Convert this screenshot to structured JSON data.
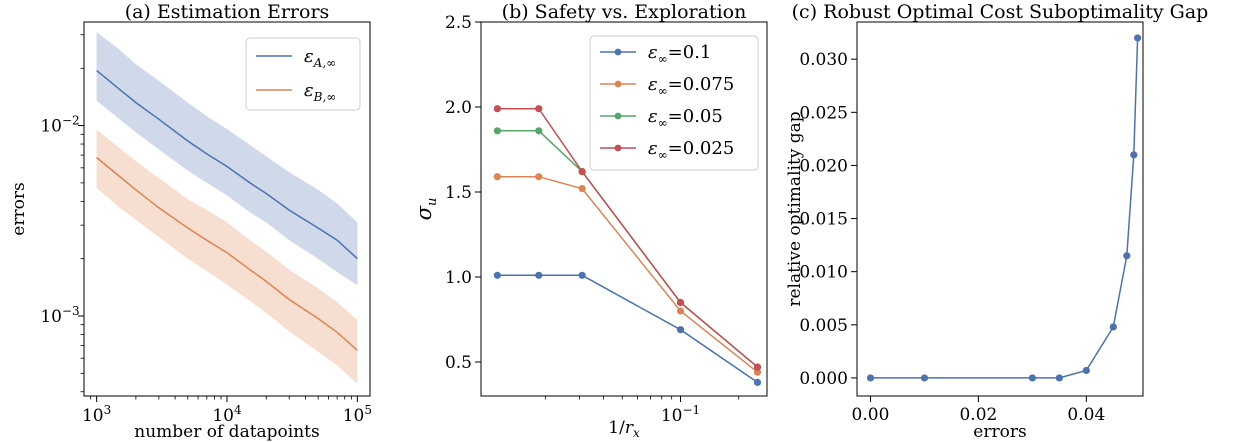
{
  "chart_data": [
    {
      "type": "line",
      "title": "(a) Estimation Errors",
      "xlabel": "number of datapoints",
      "ylabel": "errors",
      "xscale": "log",
      "yscale": "log",
      "xlim": [
        800,
        125000
      ],
      "ylim": [
        0.00038,
        0.035
      ],
      "xticks": [
        {
          "v": 1000,
          "b": "10",
          "e": "3"
        },
        {
          "v": 10000,
          "b": "10",
          "e": "4"
        },
        {
          "v": 100000,
          "b": "10",
          "e": "5"
        }
      ],
      "yticks": [
        {
          "v": 0.001,
          "b": "10",
          "e": "−3"
        },
        {
          "v": 0.01,
          "b": "10",
          "e": "−2"
        }
      ],
      "legend": {
        "position": "top-right",
        "entries": [
          {
            "main": "ε",
            "sub": "A,∞"
          },
          {
            "main": "ε",
            "sub": "B,∞"
          }
        ]
      },
      "series": [
        {
          "name": "ε_{A,∞}",
          "color": "#4c72b0",
          "band_color": "#4c72b0",
          "x": [
            1000,
            1500,
            2000,
            3000,
            5000,
            7000,
            10000,
            15000,
            20000,
            30000,
            50000,
            70000,
            100000
          ],
          "y": [
            0.0195,
            0.0155,
            0.0132,
            0.0108,
            0.0083,
            0.0071,
            0.0061,
            0.005,
            0.0044,
            0.0036,
            0.0029,
            0.0025,
            0.002
          ],
          "lower": [
            0.0135,
            0.0108,
            0.0092,
            0.0075,
            0.0058,
            0.005,
            0.0043,
            0.0035,
            0.0031,
            0.0025,
            0.002,
            0.0017,
            0.00145
          ],
          "upper": [
            0.031,
            0.025,
            0.021,
            0.0172,
            0.0132,
            0.0112,
            0.0096,
            0.0079,
            0.0069,
            0.0057,
            0.0046,
            0.0039,
            0.0031
          ]
        },
        {
          "name": "ε_{B,∞}",
          "color": "#dd8452",
          "band_color": "#dd8452",
          "x": [
            1000,
            1500,
            2000,
            3000,
            5000,
            7000,
            10000,
            15000,
            20000,
            30000,
            50000,
            70000,
            100000
          ],
          "y": [
            0.0068,
            0.0054,
            0.0046,
            0.0037,
            0.0029,
            0.0025,
            0.00215,
            0.00175,
            0.00152,
            0.00122,
            0.00097,
            0.00082,
            0.00066
          ],
          "lower": [
            0.0047,
            0.0037,
            0.0032,
            0.0026,
            0.002,
            0.00172,
            0.00146,
            0.0012,
            0.00104,
            0.00083,
            0.00065,
            0.00055,
            0.00044
          ],
          "upper": [
            0.0095,
            0.0076,
            0.0065,
            0.0053,
            0.0041,
            0.0036,
            0.0031,
            0.0025,
            0.00218,
            0.00175,
            0.0014,
            0.00118,
            0.00095
          ]
        }
      ]
    },
    {
      "type": "line",
      "title": "(b) Safety vs. Exploration",
      "xlabel": "1/r_x",
      "ylabel": "σ_u",
      "xscale": "log",
      "yscale": "linear",
      "xlim": [
        0.0093,
        0.28
      ],
      "ylim": [
        0.3,
        2.5
      ],
      "xticks": [
        {
          "v": 0.1,
          "b": "10",
          "e": "−1"
        }
      ],
      "yticks": [
        {
          "v": 0.5,
          "label": "0.5"
        },
        {
          "v": 1.0,
          "label": "1.0"
        },
        {
          "v": 1.5,
          "label": "1.5"
        },
        {
          "v": 2.0,
          "label": "2.0"
        },
        {
          "v": 2.5,
          "label": "2.5"
        }
      ],
      "legend": {
        "position": "top-right",
        "entries": [
          {
            "main": "ε",
            "sub": "∞",
            "rest": "=0.1"
          },
          {
            "main": "ε",
            "sub": "∞",
            "rest": "=0.075"
          },
          {
            "main": "ε",
            "sub": "∞",
            "rest": "=0.05"
          },
          {
            "main": "ε",
            "sub": "∞",
            "rest": "=0.025"
          }
        ]
      },
      "x": [
        0.0113,
        0.0185,
        0.031,
        0.1,
        0.25
      ],
      "series": [
        {
          "name": "ε∞=0.1",
          "color": "#4c72b0",
          "values": [
            1.01,
            1.01,
            1.01,
            0.69,
            0.38
          ]
        },
        {
          "name": "ε∞=0.075",
          "color": "#dd8452",
          "values": [
            1.59,
            1.59,
            1.52,
            0.8,
            0.44
          ]
        },
        {
          "name": "ε∞=0.05",
          "color": "#55a868",
          "values": [
            1.86,
            1.86,
            1.62,
            0.85,
            0.47
          ]
        },
        {
          "name": "ε∞=0.025",
          "color": "#c44e52",
          "values": [
            1.99,
            1.99,
            1.62,
            0.85,
            0.47
          ]
        }
      ]
    },
    {
      "type": "line",
      "title": "(c) Robust Optimal Cost Suboptimality Gap",
      "xlabel": "errors",
      "ylabel": "relative optimality gap",
      "xscale": "linear",
      "yscale": "linear",
      "xlim": [
        -0.0025,
        0.0505
      ],
      "ylim": [
        -0.0017,
        0.0335
      ],
      "xticks": [
        {
          "v": 0.0,
          "label": "0.00"
        },
        {
          "v": 0.02,
          "label": "0.02"
        },
        {
          "v": 0.04,
          "label": "0.04"
        }
      ],
      "yticks": [
        {
          "v": 0.0,
          "label": "0.000"
        },
        {
          "v": 0.005,
          "label": "0.005"
        },
        {
          "v": 0.01,
          "label": "0.010"
        },
        {
          "v": 0.015,
          "label": "0.015"
        },
        {
          "v": 0.02,
          "label": "0.020"
        },
        {
          "v": 0.025,
          "label": "0.025"
        },
        {
          "v": 0.03,
          "label": "0.030"
        }
      ],
      "series": [
        {
          "color": "#4c72b0",
          "x": [
            0.0,
            0.01,
            0.03,
            0.035,
            0.04,
            0.045,
            0.0475,
            0.0488,
            0.0495
          ],
          "y": [
            0.0,
            0.0,
            0.0,
            0.0,
            0.0007,
            0.0048,
            0.0115,
            0.021,
            0.032
          ]
        }
      ]
    }
  ]
}
